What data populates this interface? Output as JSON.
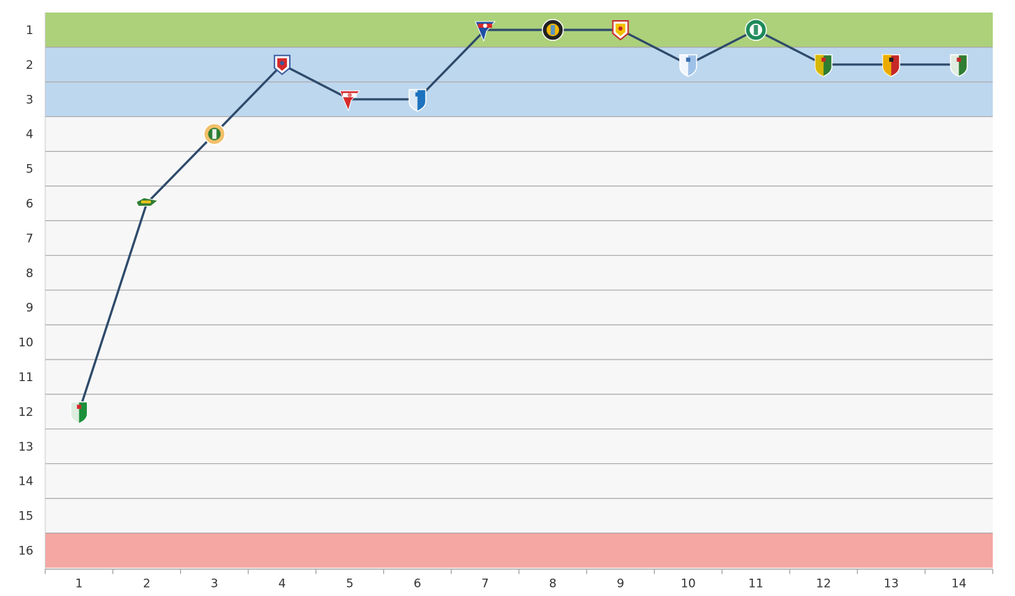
{
  "chart_data": {
    "type": "line",
    "title": "",
    "xlabel": "",
    "ylabel": "",
    "x": [
      1,
      2,
      3,
      4,
      5,
      6,
      7,
      8,
      9,
      10,
      11,
      12,
      13,
      14
    ],
    "y_positions": [
      12,
      6,
      4,
      2,
      3,
      3,
      1,
      1,
      1,
      2,
      1,
      2,
      2,
      2
    ],
    "y_axis": {
      "reversed": true,
      "range": [
        1,
        16
      ],
      "ticks": [
        1,
        2,
        3,
        4,
        5,
        6,
        7,
        8,
        9,
        10,
        11,
        12,
        13,
        14,
        15,
        16
      ]
    },
    "x_axis": {
      "range": [
        1,
        14
      ],
      "ticks": [
        1,
        2,
        3,
        4,
        5,
        6,
        7,
        8,
        9,
        10,
        11,
        12,
        13,
        14
      ]
    },
    "grid": true,
    "bands": [
      {
        "name": "top",
        "from": 1,
        "to": 1,
        "color": "#acd17a"
      },
      {
        "name": "upper",
        "from": 2,
        "to": 3,
        "color": "#bdd7ee"
      },
      {
        "name": "middle",
        "from": 4,
        "to": 15,
        "color": "#f7f7f7"
      },
      {
        "name": "bottom",
        "from": 16,
        "to": 16,
        "color": "#f4a7a3"
      }
    ],
    "line_color": "#2e4a6b",
    "markers": [
      {
        "round": 1,
        "icon": "shield-green-white-red-icon",
        "colors": [
          "#1c8f3a",
          "#ffffff",
          "#d62a2a"
        ]
      },
      {
        "round": 2,
        "icon": "badge-green-yellow-icon",
        "colors": [
          "#2f7d32",
          "#f0c419",
          "#ffffff"
        ]
      },
      {
        "round": 3,
        "icon": "round-crest-yellow-green-icon",
        "colors": [
          "#f2c06b",
          "#2e7d32",
          "#ffffff"
        ]
      },
      {
        "round": 4,
        "icon": "crest-blue-red-icon",
        "colors": [
          "#3a5ba0",
          "#d62a2a",
          "#ffffff"
        ]
      },
      {
        "round": 5,
        "icon": "pennant-red-icon",
        "colors": [
          "#d62a2a",
          "#ffffff",
          "#e57373"
        ]
      },
      {
        "round": 6,
        "icon": "shield-blue-stripes-icon",
        "colors": [
          "#1e73be",
          "#ffffff",
          "#1e73be"
        ]
      },
      {
        "round": 7,
        "icon": "pennant-blue-red-icon",
        "colors": [
          "#1f4fa3",
          "#d62a2a",
          "#ffffff"
        ]
      },
      {
        "round": 8,
        "icon": "gear-crest-icon",
        "colors": [
          "#222222",
          "#f2b705",
          "#4a90d9"
        ]
      },
      {
        "round": 9,
        "icon": "crest-red-gold-icon",
        "colors": [
          "#c62828",
          "#f2c200",
          "#ffffff"
        ]
      },
      {
        "round": 10,
        "icon": "shield-blue-white-icon",
        "colors": [
          "#9ec1e8",
          "#ffffff",
          "#3a6fb0"
        ]
      },
      {
        "round": 11,
        "icon": "round-crest-green-icon",
        "colors": [
          "#1e8a5a",
          "#ffffff",
          "#1e8a5a"
        ]
      },
      {
        "round": 12,
        "icon": "shield-green-yellow-red-icon",
        "colors": [
          "#2e7d32",
          "#f2c200",
          "#c62828"
        ]
      },
      {
        "round": 13,
        "icon": "shield-red-gold-icon",
        "colors": [
          "#c62828",
          "#f2c200",
          "#222222"
        ]
      },
      {
        "round": 14,
        "icon": "shield-green-red-white-icon",
        "colors": [
          "#2e7d32",
          "#ffffff",
          "#c62828"
        ]
      }
    ]
  }
}
